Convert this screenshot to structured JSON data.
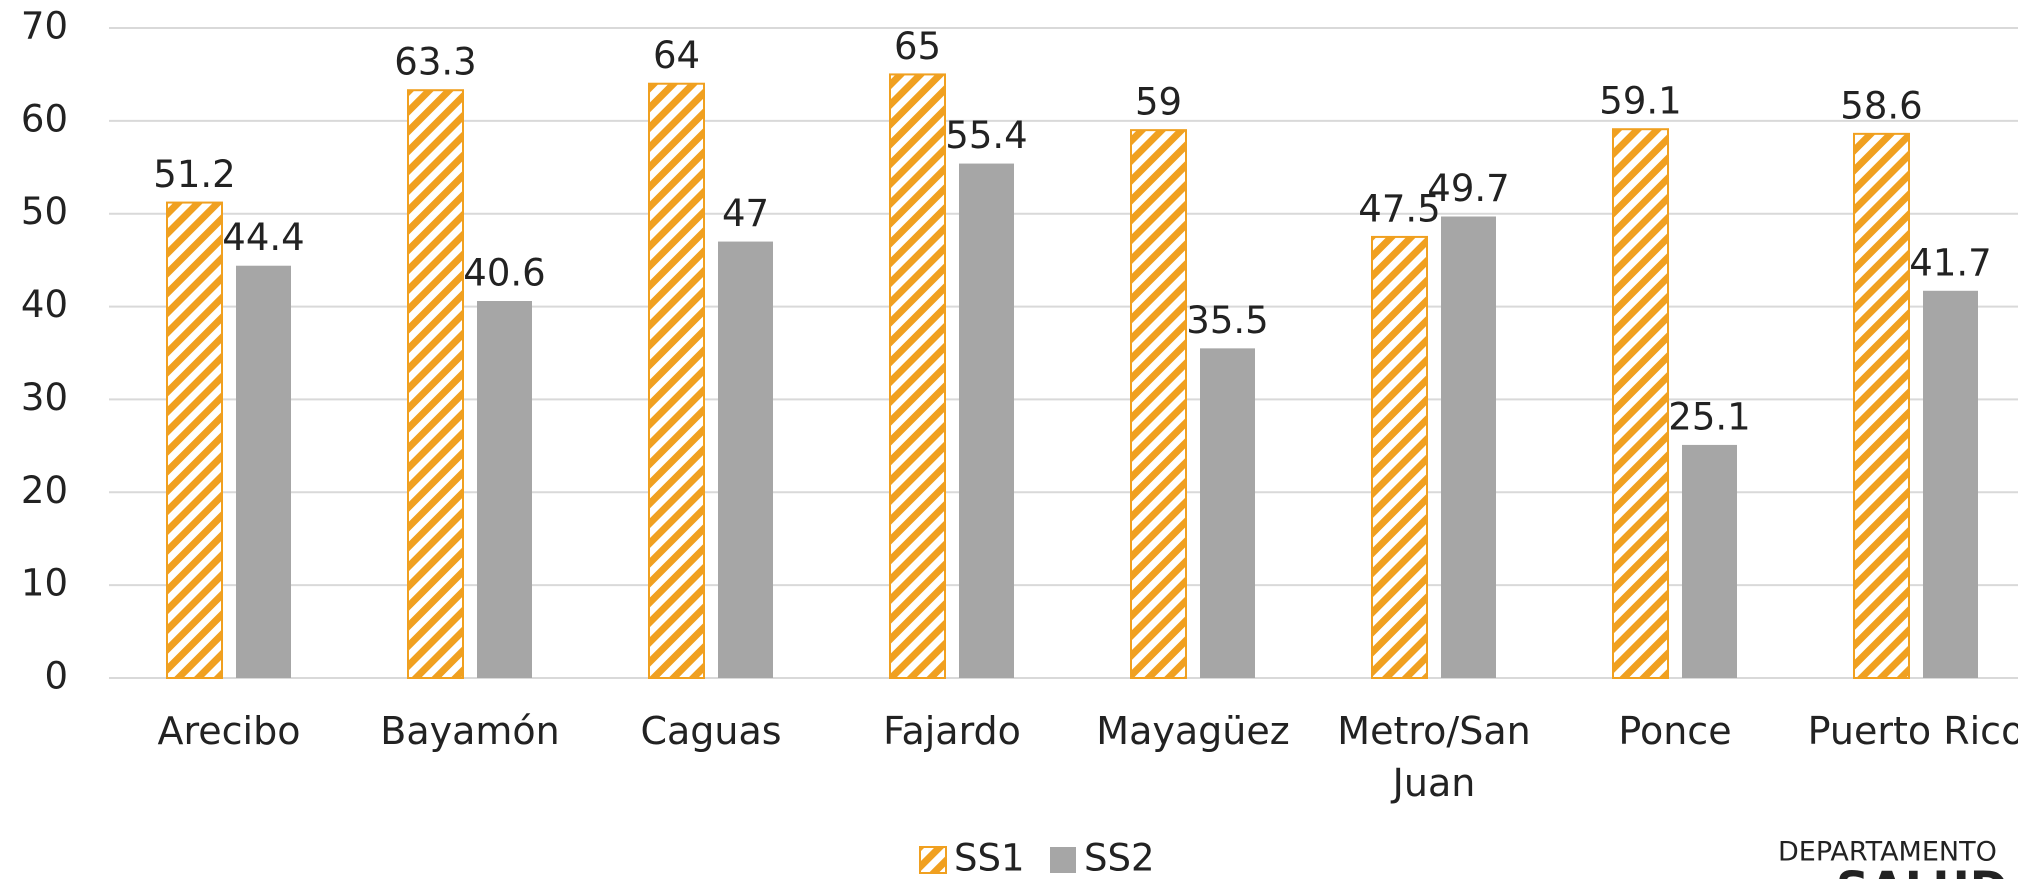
{
  "chart_data": {
    "type": "bar",
    "categories": [
      "Arecibo",
      "Bayamón",
      "Caguas",
      "Fajardo",
      "Mayagüez",
      "Metro/San Juan",
      "Ponce",
      "Puerto Rico"
    ],
    "series": [
      {
        "name": "SS1",
        "color": "#f0a020",
        "pattern": "hatch",
        "values": [
          51.2,
          63.3,
          64,
          65,
          59,
          47.5,
          59.1,
          58.6
        ]
      },
      {
        "name": "SS2",
        "color": "#a6a6a6",
        "values": [
          44.4,
          40.6,
          47,
          55.4,
          35.5,
          49.7,
          25.1,
          41.7
        ]
      }
    ],
    "ylim": [
      0,
      70
    ],
    "yticks": [
      0,
      10,
      20,
      30,
      40,
      50,
      60,
      70
    ],
    "grid": true,
    "legend": "bottom",
    "footer": [
      "DEPARTAMENTO",
      "SALUD"
    ]
  }
}
